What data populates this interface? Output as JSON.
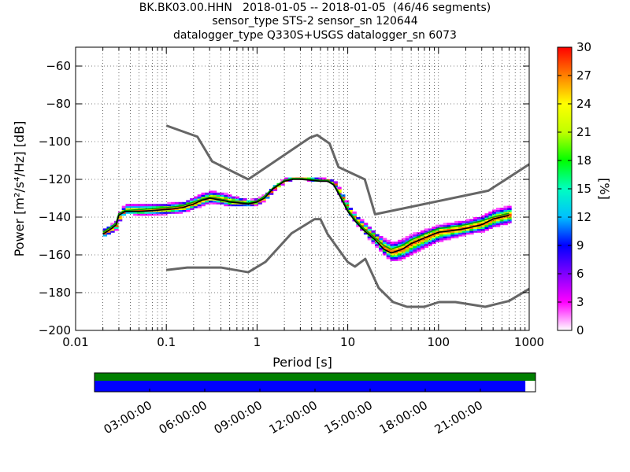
{
  "title_lines": [
    "BK.BK03.00.HHN   2018-01-05 -- 2018-01-05  (46/46 segments)",
    "sensor_type STS-2 sensor_sn 120644",
    "datalogger_type Q330S+USGS datalogger_sn 6073"
  ],
  "chart_data": {
    "type": "heatmap",
    "subtype": "probabilistic power spectral density",
    "xlabel": "Period [s]",
    "ylabel": "Power [m²/s⁴/Hz] [dB]",
    "x_scale": "log",
    "xlim": [
      0.01,
      1000
    ],
    "ylim": [
      -200,
      -50
    ],
    "x_ticks": [
      0.01,
      0.1,
      1,
      10,
      100,
      1000
    ],
    "x_tick_labels": [
      "0.01",
      "0.1",
      "1",
      "10",
      "100",
      "1000"
    ],
    "y_ticks": [
      -200,
      -180,
      -160,
      -140,
      -120,
      -100,
      -80,
      -60
    ],
    "y_tick_labels": [
      "−200",
      "−180",
      "−160",
      "−140",
      "−120",
      "−100",
      "−80",
      "−60"
    ],
    "grid": true,
    "colorbar": {
      "label": "[%]",
      "range": [
        0,
        30
      ],
      "ticks": [
        0,
        3,
        6,
        9,
        12,
        15,
        18,
        21,
        24,
        27,
        30
      ],
      "colormap": [
        "#ffffff",
        "#ff00ff",
        "#8000ff",
        "#0000ff",
        "#00c0ff",
        "#00ffc0",
        "#00ff00",
        "#c0ff00",
        "#ffff00",
        "#ff8000",
        "#ff0000"
      ]
    },
    "upper_noise_model": {
      "name": "NHNM",
      "color": "#666666",
      "x": [
        0.1,
        0.22,
        0.32,
        0.8,
        3.8,
        4.6,
        6.3,
        7.9,
        15.4,
        20,
        354.8,
        1000
      ],
      "y": [
        -91.5,
        -97.4,
        -110.5,
        -120,
        -98,
        -96.5,
        -101,
        -113.5,
        -120,
        -138.5,
        -126,
        -112
      ]
    },
    "lower_noise_model": {
      "name": "NLNM",
      "color": "#666666",
      "x": [
        0.1,
        0.17,
        0.4,
        0.8,
        1.24,
        2.4,
        4.3,
        5,
        6,
        10,
        12,
        15.6,
        21.9,
        31.6,
        45,
        70,
        101,
        154,
        328,
        600,
        1000
      ],
      "y": [
        -168,
        -166.7,
        -166.7,
        -169.2,
        -163.7,
        -148.6,
        -141.1,
        -141.1,
        -149,
        -163.8,
        -166.2,
        -162.1,
        -177.5,
        -185,
        -187.5,
        -187.5,
        -185,
        -185,
        -187.5,
        -184.4,
        -178
      ]
    },
    "mode_curve": {
      "color": "#000000",
      "x": [
        0.02,
        0.025,
        0.028,
        0.03,
        0.035,
        0.05,
        0.1,
        0.15,
        0.2,
        0.25,
        0.3,
        0.4,
        0.5,
        0.8,
        1,
        1.2,
        1.5,
        2,
        2.5,
        3,
        4,
        5,
        6,
        7,
        8,
        10,
        12,
        15,
        20,
        25,
        30,
        40,
        50,
        70,
        100,
        150,
        200,
        300,
        400,
        600
      ],
      "y": [
        -149,
        -146,
        -144,
        -139,
        -137,
        -137,
        -136,
        -135,
        -133,
        -131,
        -130,
        -131,
        -132,
        -133,
        -132,
        -130,
        -125,
        -121,
        -120,
        -120,
        -120.5,
        -121,
        -121,
        -123,
        -128,
        -137,
        -142,
        -147,
        -152,
        -157,
        -159,
        -157,
        -154,
        -151,
        -148,
        -147,
        -146,
        -144,
        -141,
        -139
      ]
    },
    "mean_curve": {
      "color": "#00a000",
      "x": [
        0.02,
        0.025,
        0.028,
        0.03,
        0.035,
        0.05,
        0.1,
        0.15,
        0.2,
        0.25,
        0.3,
        0.4,
        0.5,
        0.8,
        1,
        1.2,
        1.5,
        2,
        2.5,
        3,
        4,
        5,
        6,
        7,
        8,
        10,
        12,
        15,
        20,
        25,
        30,
        40,
        50,
        70,
        100,
        150,
        200,
        300,
        400,
        600
      ],
      "y": [
        -148,
        -145,
        -143,
        -138,
        -136.5,
        -136,
        -135,
        -134,
        -132,
        -130.5,
        -129.5,
        -130.5,
        -131.5,
        -132.5,
        -131.5,
        -129,
        -124.5,
        -120.5,
        -119.5,
        -119.5,
        -120,
        -120.5,
        -120.5,
        -122.5,
        -127,
        -136,
        -141,
        -146,
        -151,
        -155,
        -157,
        -155,
        -152,
        -149,
        -146,
        -145,
        -144,
        -142,
        -140,
        -138
      ]
    },
    "psd_envelope": {
      "x": [
        0.02,
        0.025,
        0.028,
        0.03,
        0.035,
        0.05,
        0.1,
        0.15,
        0.2,
        0.25,
        0.3,
        0.4,
        0.5,
        0.8,
        1,
        1.2,
        1.5,
        2,
        2.5,
        3,
        4,
        5,
        6,
        7,
        8,
        10,
        12,
        15,
        20,
        25,
        30,
        40,
        50,
        70,
        100,
        150,
        200,
        300,
        400,
        600
      ],
      "upper": [
        -144,
        -142,
        -140,
        -134,
        -131,
        -131,
        -131,
        -130,
        -127,
        -125,
        -124,
        -125,
        -127,
        -130,
        -129,
        -127,
        -122,
        -119,
        -118.5,
        -119,
        -119,
        -119,
        -119.5,
        -121,
        -125,
        -133,
        -138,
        -141,
        -147,
        -149,
        -150,
        -148,
        -146,
        -144,
        -142,
        -140,
        -139,
        -136,
        -133,
        -131
      ],
      "lower": [
        -152,
        -150,
        -148,
        -142,
        -140,
        -141,
        -141,
        -140,
        -138,
        -136,
        -135,
        -136,
        -137,
        -136,
        -135,
        -132,
        -127,
        -122,
        -121,
        -121,
        -122,
        -122,
        -122.5,
        -126,
        -132,
        -141,
        -146,
        -152,
        -159,
        -164,
        -168,
        -166,
        -164,
        -160,
        -157,
        -154,
        -152,
        -151,
        -149,
        -147
      ]
    }
  },
  "timeline": {
    "time_labels": [
      "03:00:00",
      "06:00:00",
      "09:00:00",
      "12:00:00",
      "15:00:00",
      "18:00:00",
      "21:00:00"
    ],
    "time_hours": [
      3,
      6,
      9,
      12,
      15,
      18,
      21
    ],
    "span_hours": 24,
    "top_bar_color": "#007f00",
    "bottom_bar_color": "#0000ff",
    "bottom_bar_fill": 0.977
  }
}
